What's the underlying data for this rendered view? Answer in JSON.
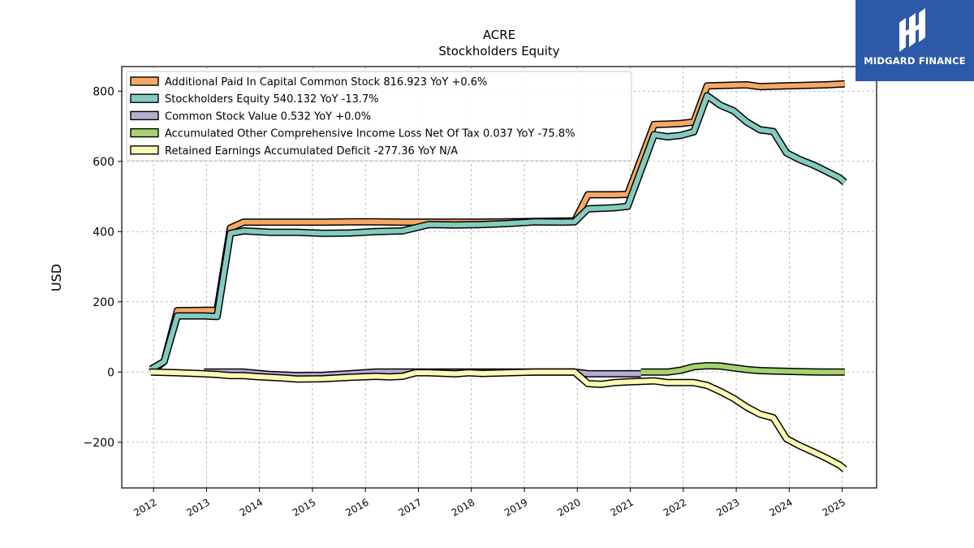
{
  "title": "ACRE",
  "subtitle": "Stockholders  Equity",
  "logo": {
    "text": "MIDGARD FINANCE",
    "bg_color": "#2e59a8"
  },
  "chart_data": {
    "type": "area",
    "xlabel": "",
    "ylabel": "USD",
    "xlim": [
      2011.4,
      2025.65
    ],
    "ylim": [
      -330,
      870
    ],
    "yticks": [
      -200,
      0,
      200,
      400,
      600,
      800
    ],
    "ytick_labels": [
      "−200",
      "0",
      "200",
      "400",
      "600",
      "800"
    ],
    "xticks": [
      2012,
      2013,
      2014,
      2015,
      2016,
      2017,
      2018,
      2019,
      2020,
      2021,
      2022,
      2023,
      2024,
      2025
    ],
    "xtick_labels": [
      "2012",
      "2013",
      "2014",
      "2015",
      "2016",
      "2017",
      "2018",
      "2019",
      "2020",
      "2021",
      "2022",
      "2023",
      "2024",
      "2025"
    ],
    "grid": true,
    "legend_position": "top-left",
    "series": [
      {
        "name": "Additional Paid In Capital Common Stock",
        "legend_label": "Additional Paid In Capital Common Stock  816.923 YoY +0.6%",
        "color": "#f5a865",
        "points": [
          [
            2011.95,
            0
          ],
          [
            2012.2,
            30
          ],
          [
            2012.45,
            175
          ],
          [
            2012.95,
            176
          ],
          [
            2013.2,
            176
          ],
          [
            2013.45,
            410
          ],
          [
            2013.7,
            427
          ],
          [
            2014.2,
            427
          ],
          [
            2014.7,
            427
          ],
          [
            2015.2,
            427
          ],
          [
            2015.7,
            428
          ],
          [
            2016.2,
            428
          ],
          [
            2016.7,
            427
          ],
          [
            2017.2,
            427
          ],
          [
            2017.7,
            427
          ],
          [
            2018.2,
            427
          ],
          [
            2018.7,
            428
          ],
          [
            2019.2,
            429
          ],
          [
            2019.7,
            430
          ],
          [
            2019.95,
            430
          ],
          [
            2020.2,
            505
          ],
          [
            2020.7,
            505
          ],
          [
            2020.95,
            506
          ],
          [
            2021.45,
            705
          ],
          [
            2021.7,
            706
          ],
          [
            2021.95,
            708
          ],
          [
            2022.2,
            712
          ],
          [
            2022.45,
            815
          ],
          [
            2022.7,
            816
          ],
          [
            2022.95,
            817
          ],
          [
            2023.2,
            818
          ],
          [
            2023.45,
            813
          ],
          [
            2023.7,
            814
          ],
          [
            2023.95,
            815
          ],
          [
            2024.2,
            816
          ],
          [
            2024.45,
            817
          ],
          [
            2024.7,
            818
          ],
          [
            2024.95,
            820
          ],
          [
            2025.05,
            821
          ]
        ]
      },
      {
        "name": "Stockholders Equity",
        "legend_label": "Stockholders Equity  540.132 YoY -13.7%",
        "color": "#84cbbf",
        "points": [
          [
            2011.95,
            8
          ],
          [
            2012.2,
            30
          ],
          [
            2012.45,
            160
          ],
          [
            2012.95,
            160
          ],
          [
            2013.2,
            158
          ],
          [
            2013.45,
            395
          ],
          [
            2013.7,
            402
          ],
          [
            2014.2,
            398
          ],
          [
            2014.7,
            398
          ],
          [
            2015.2,
            395
          ],
          [
            2015.7,
            396
          ],
          [
            2016.2,
            400
          ],
          [
            2016.7,
            402
          ],
          [
            2017.2,
            420
          ],
          [
            2017.7,
            419
          ],
          [
            2018.2,
            420
          ],
          [
            2018.7,
            423
          ],
          [
            2019.2,
            428
          ],
          [
            2019.7,
            427
          ],
          [
            2019.95,
            428
          ],
          [
            2020.2,
            465
          ],
          [
            2020.7,
            468
          ],
          [
            2020.95,
            472
          ],
          [
            2021.45,
            676
          ],
          [
            2021.7,
            670
          ],
          [
            2021.95,
            674
          ],
          [
            2022.2,
            684
          ],
          [
            2022.45,
            787
          ],
          [
            2022.7,
            760
          ],
          [
            2022.95,
            744
          ],
          [
            2023.2,
            712
          ],
          [
            2023.45,
            690
          ],
          [
            2023.7,
            685
          ],
          [
            2023.95,
            624
          ],
          [
            2024.2,
            605
          ],
          [
            2024.45,
            590
          ],
          [
            2024.7,
            572
          ],
          [
            2024.95,
            553
          ],
          [
            2025.05,
            540
          ]
        ]
      },
      {
        "name": "Common Stock Value",
        "legend_label": "Common Stock Value  0.532 YoY +0.0%",
        "color": "#b3aed2",
        "points": [
          [
            2012.95,
            0
          ],
          [
            2013.2,
            0
          ],
          [
            2013.7,
            0
          ],
          [
            2014.2,
            -7
          ],
          [
            2014.7,
            -10
          ],
          [
            2015.2,
            -9
          ],
          [
            2015.7,
            -5
          ],
          [
            2016.2,
            0
          ],
          [
            2016.7,
            0
          ],
          [
            2017.2,
            0
          ],
          [
            2017.7,
            0
          ],
          [
            2018.2,
            0
          ],
          [
            2018.7,
            0
          ],
          [
            2019.2,
            0
          ],
          [
            2019.7,
            0
          ],
          [
            2019.95,
            0
          ],
          [
            2020.2,
            -5
          ],
          [
            2020.7,
            -5
          ],
          [
            2020.95,
            -5
          ],
          [
            2021.2,
            -5
          ]
        ]
      },
      {
        "name": "Accumulated Other Comprehensive Income Loss Net Of Tax",
        "legend_label": "Accumulated Other Comprehensive Income Loss Net Of Tax  0.037 YoY -75.8%",
        "color": "#a4d26e",
        "points": [
          [
            2021.2,
            0
          ],
          [
            2021.45,
            0
          ],
          [
            2021.7,
            0
          ],
          [
            2021.95,
            5
          ],
          [
            2022.2,
            15
          ],
          [
            2022.45,
            18
          ],
          [
            2022.7,
            17
          ],
          [
            2022.95,
            12
          ],
          [
            2023.2,
            7
          ],
          [
            2023.45,
            4
          ],
          [
            2023.7,
            3
          ],
          [
            2023.95,
            2
          ],
          [
            2024.2,
            1
          ],
          [
            2024.45,
            0.5
          ],
          [
            2024.7,
            0.2
          ],
          [
            2025.05,
            0.04
          ]
        ]
      },
      {
        "name": "Retained Earnings Accumulated Deficit",
        "legend_label": "Retained Earnings Accumulated Deficit  -277.36 YoY N/A",
        "color": "#fafab4",
        "points": [
          [
            2011.95,
            0
          ],
          [
            2012.45,
            -2
          ],
          [
            2012.95,
            -5
          ],
          [
            2013.2,
            -7
          ],
          [
            2013.45,
            -10
          ],
          [
            2013.7,
            -10
          ],
          [
            2013.95,
            -13
          ],
          [
            2014.2,
            -15
          ],
          [
            2014.45,
            -17
          ],
          [
            2014.7,
            -20
          ],
          [
            2015.2,
            -19
          ],
          [
            2015.7,
            -15
          ],
          [
            2016.2,
            -12
          ],
          [
            2016.45,
            -14
          ],
          [
            2016.7,
            -12
          ],
          [
            2016.95,
            -2
          ],
          [
            2017.2,
            -2
          ],
          [
            2017.7,
            -5
          ],
          [
            2017.95,
            -2
          ],
          [
            2018.2,
            -4
          ],
          [
            2018.7,
            -2
          ],
          [
            2019.2,
            0
          ],
          [
            2019.7,
            0
          ],
          [
            2019.95,
            0
          ],
          [
            2020.2,
            -33
          ],
          [
            2020.45,
            -35
          ],
          [
            2020.7,
            -30
          ],
          [
            2020.95,
            -28
          ],
          [
            2021.45,
            -25
          ],
          [
            2021.7,
            -30
          ],
          [
            2022.2,
            -30
          ],
          [
            2022.45,
            -38
          ],
          [
            2022.7,
            -55
          ],
          [
            2022.95,
            -75
          ],
          [
            2023.2,
            -100
          ],
          [
            2023.45,
            -120
          ],
          [
            2023.7,
            -130
          ],
          [
            2023.95,
            -190
          ],
          [
            2024.2,
            -210
          ],
          [
            2024.45,
            -227
          ],
          [
            2024.7,
            -245
          ],
          [
            2024.95,
            -265
          ],
          [
            2025.05,
            -277
          ]
        ]
      }
    ]
  }
}
